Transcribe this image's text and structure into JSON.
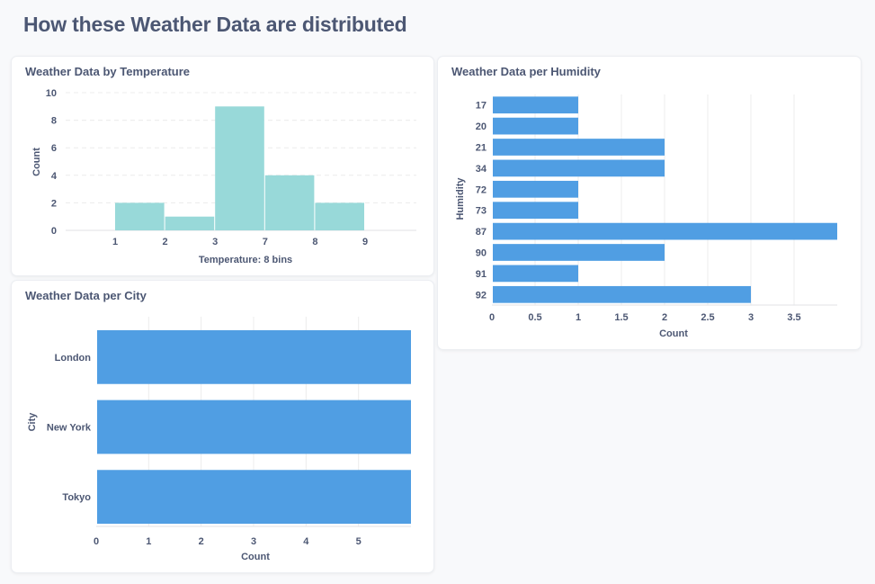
{
  "page": {
    "title": "How these Weather Data are distributed"
  },
  "colors": {
    "histogram_bar": "#98d9d9",
    "row_bar": "#509ee3",
    "text": "#4c5773",
    "grid": "#ececec",
    "axis": "#e0e2e6"
  },
  "cards": {
    "temperature": {
      "title": "Weather Data by Temperature"
    },
    "humidity": {
      "title": "Weather Data per Humidity"
    },
    "city": {
      "title": "Weather Data per City"
    }
  },
  "chart_data": [
    {
      "id": "temperature",
      "type": "bar",
      "title": "Weather Data by Temperature",
      "xlabel": "Temperature: 8 bins",
      "ylabel": "Count",
      "x_tick_labels": [
        "1",
        "2",
        "3",
        "7",
        "8",
        "9"
      ],
      "categories": [
        "1–2",
        "2–3",
        "3–7",
        "7–8",
        "8–9"
      ],
      "values": [
        2,
        1,
        9,
        4,
        2
      ],
      "ylim": [
        0,
        10
      ],
      "yticks": [
        0,
        2,
        4,
        6,
        8,
        10
      ],
      "grid": true,
      "legend": "none"
    },
    {
      "id": "humidity",
      "type": "bar",
      "orientation": "horizontal",
      "title": "Weather Data per Humidity",
      "xlabel": "Count",
      "ylabel": "Humidity",
      "categories": [
        "17",
        "20",
        "21",
        "34",
        "72",
        "73",
        "87",
        "90",
        "91",
        "92"
      ],
      "values": [
        1,
        1,
        2,
        2,
        1,
        1,
        4,
        2,
        1,
        3
      ],
      "xlim": [
        0,
        4
      ],
      "xtick_labels": [
        "0",
        "0.5",
        "1",
        "1.5",
        "2",
        "2.5",
        "3",
        "3.5"
      ],
      "xtick_values": [
        0,
        0.5,
        1,
        1.5,
        2,
        2.5,
        3,
        3.5
      ],
      "grid": true,
      "legend": "none"
    },
    {
      "id": "city",
      "type": "bar",
      "orientation": "horizontal",
      "title": "Weather Data per City",
      "xlabel": "Count",
      "ylabel": "City",
      "categories": [
        "London",
        "New York",
        "Tokyo"
      ],
      "values": [
        6,
        6,
        6
      ],
      "xlim": [
        0,
        6
      ],
      "xtick_labels": [
        "0",
        "1",
        "2",
        "3",
        "4",
        "5"
      ],
      "xtick_values": [
        0,
        1,
        2,
        3,
        4,
        5
      ],
      "grid": true,
      "legend": "none"
    }
  ]
}
